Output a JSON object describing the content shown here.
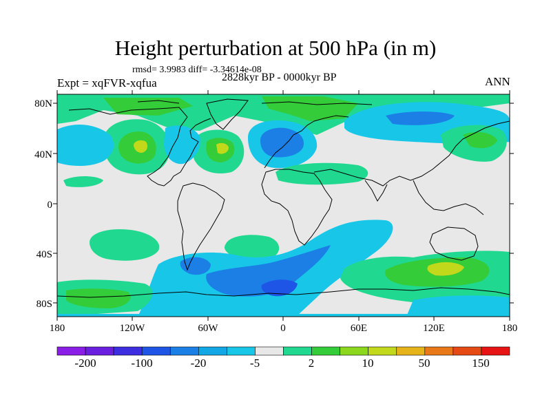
{
  "title": "Height perturbation at 500 hPa (in m)",
  "stats": "rmsd= 3.9983 diff= -3.34614e-08",
  "period": "2828kyr BP - 0000kyr BP",
  "experiment": "Expt = xqFVR-xqfua",
  "season": "ANN",
  "lat_labels": [
    "80N",
    "40N",
    "0",
    "40S",
    "80S"
  ],
  "lon_labels": [
    "180",
    "120W",
    "60W",
    "0",
    "60E",
    "120E",
    "180"
  ],
  "colorbar": {
    "labels": [
      "-200",
      "-100",
      "-20",
      "-5",
      "2",
      "10",
      "50",
      "150"
    ],
    "colors": [
      "#8a1ee6",
      "#6a1fe0",
      "#3d2ee0",
      "#1f55e6",
      "#1b7fe6",
      "#14a7e6",
      "#18c7e8",
      "#e8e8e8",
      "#20d890",
      "#35cc3a",
      "#8cd81f",
      "#c2d81a",
      "#e6b41a",
      "#e87818",
      "#e64a14",
      "#e61414"
    ]
  },
  "colors": {
    "land_outline": "#000000",
    "neutral": "#e8e8e8",
    "negative_light": "#18c7e8",
    "negative_mid": "#1b7fe6",
    "positive_light": "#20d890",
    "positive_mid": "#35cc3a",
    "positive_high": "#c2d81a"
  }
}
